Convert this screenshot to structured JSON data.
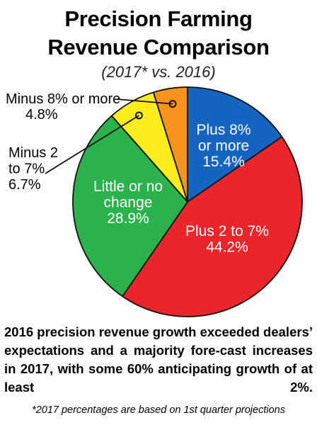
{
  "title_line1": "Precision Farming",
  "title_line2": "Revenue Comparison",
  "subtitle": "(2017* vs. 2016)",
  "caption": "2016 precision revenue growth exceeded dealers’ expectations and a majority fore-cast increases in 2017, with some 60% anticipating growth of at least 2%.",
  "footnote": "*2017 percentages are based on 1st quarter projections",
  "chart_data": {
    "type": "pie",
    "title": "Precision Farming Revenue Comparison",
    "subtitle": "(2017* vs. 2016)",
    "slices": [
      {
        "label": "Plus 8% or more",
        "value": 15.4,
        "display": "15.4%",
        "color": "#1565c0",
        "text_color": "#ffffff",
        "label_position": "inside"
      },
      {
        "label": "Plus 2 to 7%",
        "value": 44.2,
        "display": "44.2%",
        "color": "#e8262b",
        "text_color": "#ffffff",
        "label_position": "inside"
      },
      {
        "label": "Little or no change",
        "value": 28.9,
        "display": "28.9%",
        "color": "#2bb24c",
        "text_color": "#ffffff",
        "label_position": "inside"
      },
      {
        "label": "Minus 2 to 7%",
        "value": 6.7,
        "display": "6.7%",
        "color": "#ffec1c",
        "text_color": "#000000",
        "label_position": "outside"
      },
      {
        "label": "Minus 8% or more",
        "value": 4.8,
        "display": "4.8%",
        "color": "#f7941d",
        "text_color": "#000000",
        "label_position": "outside"
      }
    ],
    "start": "top, clockwise"
  }
}
